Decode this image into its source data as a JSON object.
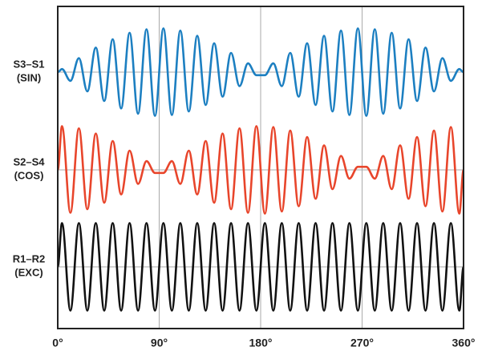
{
  "chart_data": {
    "type": "line",
    "x": [
      0,
      3.75,
      11.25,
      18.75,
      26.25,
      33.75,
      41.25,
      48.75,
      56.25,
      63.75,
      71.25,
      78.75,
      86.25,
      93.75,
      101.25,
      108.75,
      116.25,
      123.75,
      131.25,
      138.75,
      146.25,
      153.75,
      161.25,
      168.75,
      176.25,
      183.75,
      191.25,
      198.75,
      206.25,
      213.75,
      221.25,
      228.75,
      236.25,
      243.75,
      251.25,
      258.75,
      266.25,
      273.75,
      281.25,
      288.75,
      296.25,
      303.75,
      311.25,
      318.75,
      326.25,
      333.75,
      341.25,
      348.75,
      356.25,
      360
    ],
    "xlim": [
      0,
      360
    ],
    "xticks": [
      {
        "value": 0,
        "label": "0°"
      },
      {
        "value": 90,
        "label": "90°"
      },
      {
        "value": 180,
        "label": "180°"
      },
      {
        "value": 270,
        "label": "270°"
      },
      {
        "value": 360,
        "label": "360°"
      }
    ],
    "ylim": [
      -1.1,
      1.1
    ],
    "yticks": [
      0
    ],
    "grid": true,
    "series": [
      {
        "name": "S3–S1",
        "sublabel": "(SIN)",
        "color": "#1c7fc1",
        "values": [
          0,
          0.07,
          -0.2,
          0.32,
          -0.44,
          0.56,
          -0.66,
          0.75,
          -0.83,
          0.9,
          -0.95,
          0.98,
          -1,
          1,
          -0.98,
          0.95,
          -0.9,
          0.83,
          -0.75,
          0.66,
          -0.56,
          0.44,
          -0.32,
          0.2,
          -0.07,
          -0.07,
          0.2,
          -0.32,
          0.44,
          -0.56,
          0.66,
          -0.75,
          0.83,
          -0.9,
          0.95,
          -0.98,
          1,
          -1,
          0.98,
          -0.95,
          0.9,
          -0.83,
          0.75,
          -0.66,
          0.56,
          -0.44,
          0.32,
          -0.2,
          0.07,
          0
        ]
      },
      {
        "name": "S2–S4",
        "sublabel": "(COS)",
        "color": "#e8452b",
        "values": [
          0,
          1,
          -0.98,
          0.95,
          -0.9,
          0.83,
          -0.75,
          0.66,
          -0.56,
          0.44,
          -0.32,
          0.2,
          -0.07,
          -0.07,
          0.2,
          -0.32,
          0.44,
          -0.56,
          0.66,
          -0.75,
          0.83,
          -0.9,
          0.95,
          -0.98,
          1,
          -1,
          0.98,
          -0.95,
          0.9,
          -0.83,
          0.75,
          -0.66,
          0.56,
          -0.44,
          0.32,
          -0.2,
          0.07,
          0.07,
          -0.2,
          0.32,
          -0.44,
          0.56,
          -0.66,
          0.75,
          -0.83,
          0.9,
          -0.95,
          0.98,
          -1,
          0
        ]
      },
      {
        "name": "R1–R2",
        "sublabel": "(EXC)",
        "color": "#111111",
        "values": [
          0,
          1,
          -1,
          1,
          -1,
          1,
          -1,
          1,
          -1,
          1,
          -1,
          1,
          -1,
          1,
          -1,
          1,
          -1,
          1,
          -1,
          1,
          -1,
          1,
          -1,
          1,
          -1,
          1,
          -1,
          1,
          -1,
          1,
          -1,
          1,
          -1,
          1,
          -1,
          1,
          -1,
          1,
          -1,
          1,
          -1,
          1,
          -1,
          1,
          -1,
          1,
          -1,
          1,
          -1,
          0
        ]
      }
    ]
  }
}
